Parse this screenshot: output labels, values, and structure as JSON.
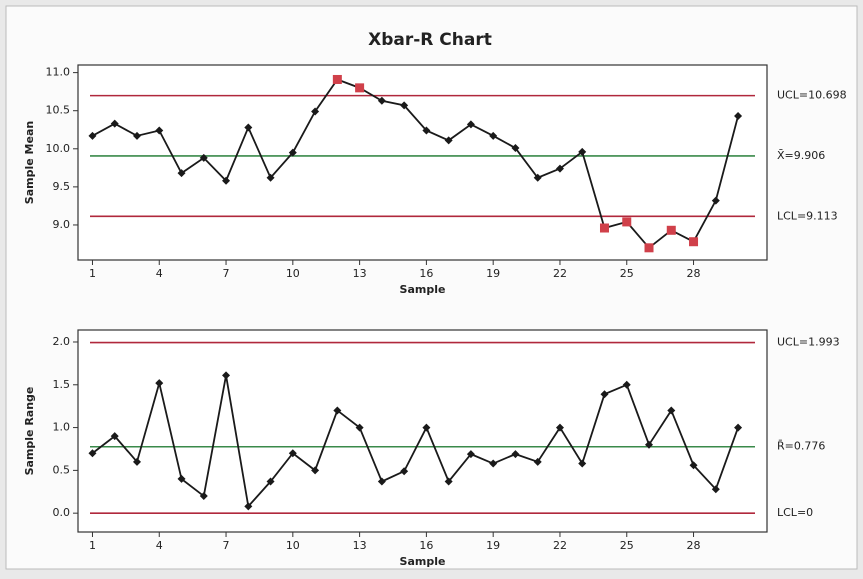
{
  "chart_data": [
    {
      "type": "line",
      "title": "Xbar-R Chart",
      "x_label": "Sample",
      "y_label": "Sample Mean",
      "x": [
        1,
        2,
        3,
        4,
        5,
        6,
        7,
        8,
        9,
        10,
        11,
        12,
        13,
        14,
        15,
        16,
        17,
        18,
        19,
        20,
        21,
        22,
        23,
        24,
        25,
        26,
        27,
        28,
        29,
        30
      ],
      "series": [
        {
          "color": "#1a1a1a",
          "values": [
            10.17,
            10.33,
            10.17,
            10.24,
            9.68,
            9.88,
            9.58,
            10.28,
            9.62,
            9.95,
            10.49,
            10.91,
            10.8,
            10.63,
            10.57,
            10.24,
            10.11,
            10.32,
            10.17,
            10.01,
            9.62,
            9.74,
            9.96,
            8.96,
            9.04,
            8.7,
            8.93,
            8.78,
            9.32,
            10.43
          ]
        }
      ],
      "alert_color": "#d0404a",
      "reference_lines": [
        {
          "value": 10.698,
          "label": "UCL=10.698",
          "color": "#b0283c"
        },
        {
          "value": 9.906,
          "label": "X̄=9.906",
          "color": "#3a8a4a"
        },
        {
          "value": 9.113,
          "label": "LCL=9.113",
          "color": "#b0283c"
        }
      ],
      "xlim": [
        0.35,
        31.3
      ],
      "xticks": [
        1,
        4,
        7,
        10,
        13,
        16,
        19,
        22,
        25,
        28
      ],
      "ylim": [
        8.54,
        11.1
      ],
      "yticks": [
        {
          "value": 9,
          "label": "9.0"
        },
        9.5,
        {
          "value": 10,
          "label": "10.0"
        },
        10.5,
        {
          "value": 11,
          "label": "11.0"
        }
      ]
    },
    {
      "type": "line",
      "x_label": "Sample",
      "y_label": "Sample Range",
      "x": [
        1,
        2,
        3,
        4,
        5,
        6,
        7,
        8,
        9,
        10,
        11,
        12,
        13,
        14,
        15,
        16,
        17,
        18,
        19,
        20,
        21,
        22,
        23,
        24,
        25,
        26,
        27,
        28,
        29,
        30
      ],
      "series": [
        {
          "color": "#1a1a1a",
          "values": [
            0.7,
            0.9,
            0.6,
            1.52,
            0.4,
            0.2,
            1.61,
            0.08,
            0.37,
            0.7,
            0.5,
            1.2,
            1.0,
            0.37,
            0.49,
            1.0,
            0.37,
            0.69,
            0.58,
            0.69,
            0.6,
            1.0,
            0.58,
            1.39,
            1.5,
            0.8,
            1.2,
            0.56,
            0.28,
            1.0
          ]
        }
      ],
      "alert_color": "#d0404a",
      "reference_lines": [
        {
          "value": 1.993,
          "label": "UCL=1.993",
          "color": "#b0283c"
        },
        {
          "value": 0.776,
          "label": "R̄=0.776",
          "color": "#3a8a4a"
        },
        {
          "value": 0,
          "label": "LCL=0",
          "color": "#b0283c"
        }
      ],
      "xlim": [
        0.35,
        31.3
      ],
      "xticks": [
        1,
        4,
        7,
        10,
        13,
        16,
        19,
        22,
        25,
        28
      ],
      "ylim": [
        -0.22,
        2.14
      ],
      "yticks": [
        {
          "value": 0,
          "label": "0.0"
        },
        0.5,
        {
          "value": 1,
          "label": "1.0"
        },
        1.5,
        {
          "value": 2,
          "label": "2.0"
        }
      ]
    }
  ]
}
